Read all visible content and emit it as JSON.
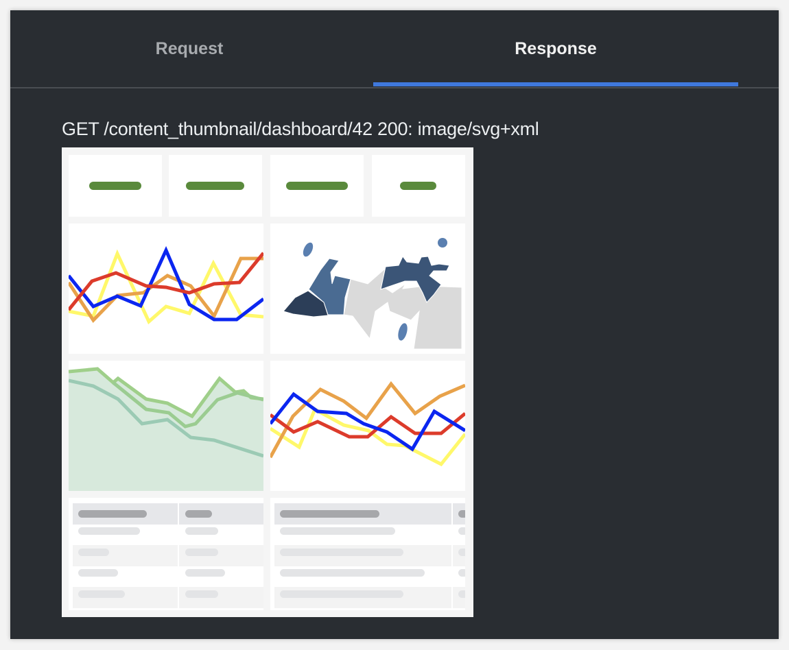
{
  "tabs": [
    {
      "label": "Request",
      "active": false
    },
    {
      "label": "Response",
      "active": true
    }
  ],
  "response": {
    "summary": "GET /content_thumbnail/dashboard/42 200: image/svg+xml"
  },
  "colors": {
    "accent": "#3f78dc",
    "panel_bg": "#292d32"
  }
}
